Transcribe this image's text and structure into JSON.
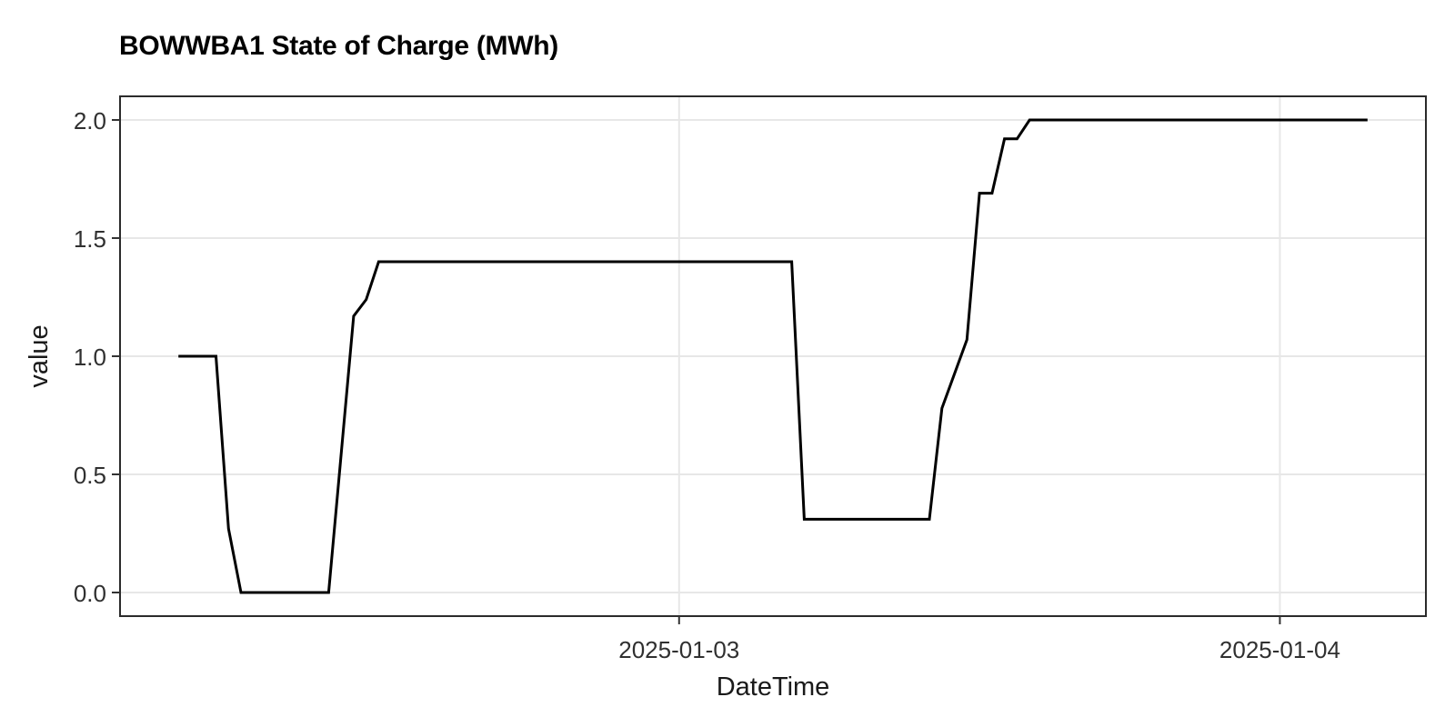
{
  "page": {
    "background": "#ffffff"
  },
  "chart_data": {
    "type": "line",
    "title": "BOWWBA1 State of Charge (MWh)",
    "xlabel": "DateTime",
    "ylabel": "value",
    "grid": true,
    "legend": false,
    "panel_background": "#ffffff",
    "panel_border_color": "#2b2b2b",
    "grid_color": "#e7e7e7",
    "tick_color": "#333333",
    "tick_label_color": "#303030",
    "line_color": "#000000",
    "ylim": [
      -0.1,
      2.1
    ],
    "xlim": [
      "2025-01-02T01:40",
      "2025-01-04T05:50"
    ],
    "y_ticks": [
      {
        "v": 0.0,
        "label": "0.0"
      },
      {
        "v": 0.5,
        "label": "0.5"
      },
      {
        "v": 1.0,
        "label": "1.0"
      },
      {
        "v": 1.5,
        "label": "1.5"
      },
      {
        "v": 2.0,
        "label": "2.0"
      }
    ],
    "x_ticks": [
      {
        "t": "2025-01-03T00:00",
        "label": "2025-01-03"
      },
      {
        "t": "2025-01-04T00:00",
        "label": "2025-01-04"
      }
    ],
    "series": [
      {
        "name": "BOWWBA1 state of charge",
        "color": "#000000",
        "points": [
          [
            "2025-01-02T04:00",
            1.0
          ],
          [
            "2025-01-02T05:30",
            1.0
          ],
          [
            "2025-01-02T06:00",
            0.27
          ],
          [
            "2025-01-02T06:30",
            0.0
          ],
          [
            "2025-01-02T10:00",
            0.0
          ],
          [
            "2025-01-02T11:00",
            1.17
          ],
          [
            "2025-01-02T11:30",
            1.24
          ],
          [
            "2025-01-02T12:00",
            1.4
          ],
          [
            "2025-01-03T04:30",
            1.4
          ],
          [
            "2025-01-03T05:00",
            0.31
          ],
          [
            "2025-01-03T10:00",
            0.31
          ],
          [
            "2025-01-03T10:30",
            0.78
          ],
          [
            "2025-01-03T11:30",
            1.07
          ],
          [
            "2025-01-03T12:00",
            1.69
          ],
          [
            "2025-01-03T12:30",
            1.69
          ],
          [
            "2025-01-03T13:00",
            1.92
          ],
          [
            "2025-01-03T13:30",
            1.92
          ],
          [
            "2025-01-03T14:00",
            2.0
          ],
          [
            "2025-01-04T03:30",
            2.0
          ]
        ]
      }
    ]
  }
}
